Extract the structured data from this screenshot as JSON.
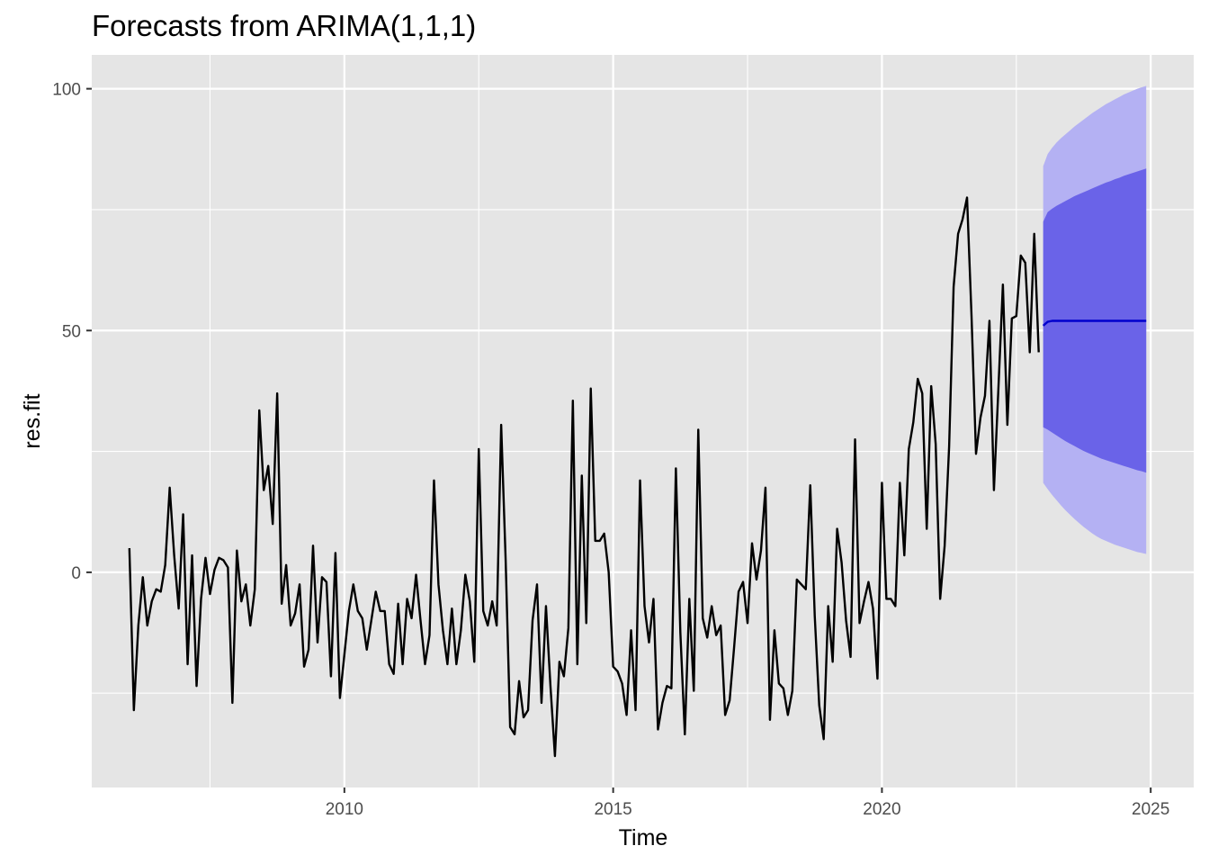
{
  "chart_data": {
    "type": "line",
    "title": "Forecasts from ARIMA(1,1,1)",
    "xlabel": "Time",
    "ylabel": "res.fit",
    "xlim": [
      2005.3,
      2025.8
    ],
    "ylim": [
      -44.5,
      107
    ],
    "x_ticks": [
      2010,
      2015,
      2020,
      2025
    ],
    "y_ticks": [
      0,
      50,
      100
    ],
    "grid": true,
    "legend": "none",
    "colors": {
      "panel_background": "#e5e5e5",
      "grid_line": "#ffffff",
      "observed_line": "#000000",
      "forecast_mean": "#0000cd",
      "pi80_fill": "#6a63e8",
      "pi95_fill": "#b4b1f3"
    },
    "observed": {
      "start": 2006.0,
      "frequency": 12,
      "values": [
        5,
        -28.5,
        -11,
        -1,
        -11,
        -6,
        -3.5,
        -4,
        1.5,
        17.5,
        3.5,
        -7.5,
        12,
        -19,
        3.5,
        -23.5,
        -5.5,
        3,
        -4.5,
        0.5,
        3,
        2.5,
        1,
        -27,
        4.5,
        -6,
        -2.5,
        -11,
        -3.5,
        33.5,
        17,
        22,
        10,
        37,
        -6.5,
        1.5,
        -11,
        -8.5,
        -2.5,
        -19.5,
        -16,
        5.5,
        -14.5,
        -1,
        -2,
        -21.5,
        4,
        -26,
        -17,
        -8,
        -2.5,
        -8,
        -9.5,
        -16,
        -10,
        -4,
        -8,
        -8,
        -19,
        -21,
        -6.5,
        -19,
        -5.5,
        -9.5,
        -0.5,
        -10,
        -19,
        -13,
        19,
        -2.5,
        -12,
        -19,
        -7.5,
        -19,
        -12,
        -0.5,
        -6,
        -18.5,
        25.5,
        -8,
        -11,
        -6,
        -11,
        30.5,
        2.5,
        -32,
        -33.5,
        -22.5,
        -30,
        -28.5,
        -10,
        -2.5,
        -27,
        -7,
        -23.5,
        -38,
        -18.5,
        -21.5,
        -11.5,
        35.5,
        -19,
        20,
        -10.5,
        38,
        6.5,
        6.5,
        8,
        0,
        -19.5,
        -20.5,
        -23,
        -29.5,
        -12,
        -28.5,
        19,
        -7,
        -14.5,
        -5.5,
        -32.5,
        -27,
        -23.5,
        -24,
        21.5,
        -12.5,
        -33.5,
        -5.5,
        -24.5,
        29.5,
        -9.5,
        -13.5,
        -7,
        -13,
        -11,
        -29.5,
        -26.5,
        -15.5,
        -4,
        -2,
        -10.5,
        6,
        -1.5,
        4.5,
        17.5,
        -30.5,
        -12,
        -23,
        -24,
        -29.5,
        -24.5,
        -1.5,
        -2.5,
        -3.5,
        18,
        -9,
        -27.5,
        -34.5,
        -7,
        -18.5,
        9,
        2,
        -10,
        -17.5,
        27.5,
        -10.5,
        -6,
        -2,
        -7.5,
        -22,
        18.5,
        -5.5,
        -5.5,
        -7,
        18.5,
        3.5,
        25.5,
        31,
        40,
        37,
        9,
        38.5,
        26.5,
        -5.5,
        5.5,
        26,
        59,
        70,
        73,
        77.5,
        53,
        24.5,
        32,
        36.5,
        52,
        17,
        38,
        59.5,
        30.5,
        52.5,
        53,
        65.5,
        64,
        45.5,
        70,
        45.5
      ]
    },
    "forecast": {
      "start": 2023.0,
      "frequency": 12,
      "mean": [
        51,
        51.8,
        52,
        52,
        52,
        52,
        52,
        52,
        52,
        52,
        52,
        52,
        52,
        52,
        52,
        52,
        52,
        52,
        52,
        52,
        52,
        52,
        52,
        52
      ],
      "lower_80": [
        30,
        29.5,
        28.9,
        28.3,
        27.7,
        27.1,
        26.6,
        26.1,
        25.6,
        25.1,
        24.7,
        24.3,
        23.9,
        23.5,
        23.2,
        22.9,
        22.6,
        22.3,
        22,
        21.7,
        21.4,
        21.1,
        20.9,
        20.6
      ],
      "upper_80": [
        72.5,
        74.5,
        75.2,
        75.8,
        76.3,
        76.8,
        77.3,
        77.8,
        78.2,
        78.6,
        79,
        79.4,
        79.8,
        80.2,
        80.6,
        80.9,
        81.3,
        81.6,
        82,
        82.3,
        82.6,
        82.9,
        83.2,
        83.5
      ],
      "lower_95": [
        18.5,
        17.2,
        16,
        14.9,
        13.8,
        12.8,
        11.9,
        11,
        10.2,
        9.4,
        8.7,
        8,
        7.4,
        6.9,
        6.5,
        6.1,
        5.7,
        5.4,
        5.1,
        4.8,
        4.5,
        4.2,
        4,
        3.8
      ],
      "upper_95": [
        84,
        86.5,
        87.8,
        88.9,
        89.8,
        90.6,
        91.4,
        92.2,
        92.9,
        93.6,
        94.3,
        95,
        95.6,
        96.2,
        96.8,
        97.3,
        97.8,
        98.3,
        98.8,
        99.2,
        99.6,
        100,
        100.3,
        100.6
      ]
    }
  }
}
